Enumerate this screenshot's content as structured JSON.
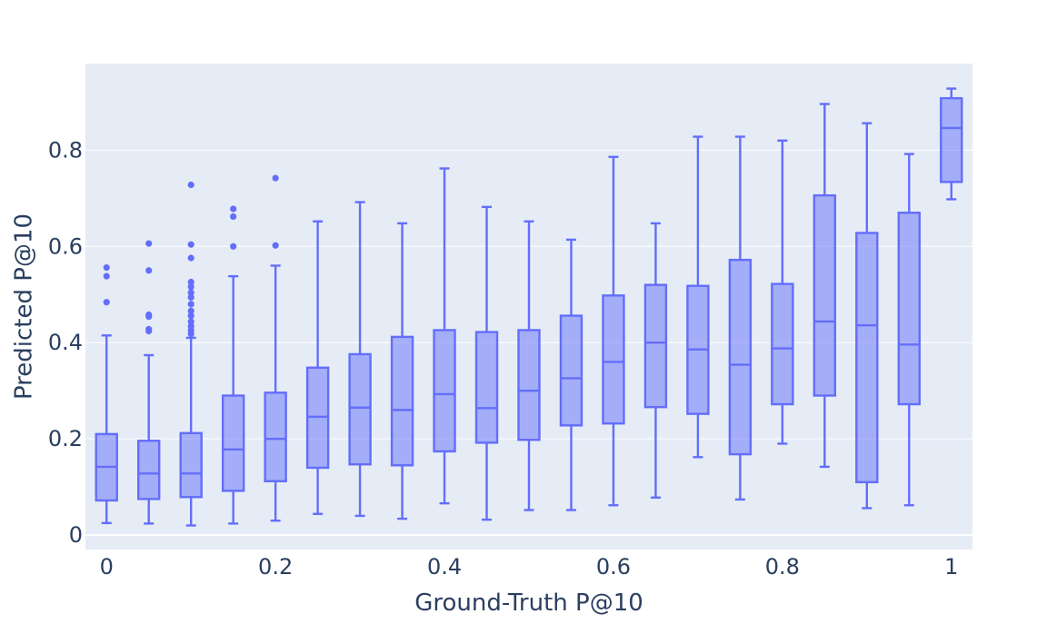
{
  "chart_data": {
    "type": "box",
    "title": "",
    "xlabel": "Ground-Truth P@10",
    "ylabel": "Predicted P@10",
    "xlim": [
      -0.025,
      1.025
    ],
    "ylim": [
      -0.03,
      0.98
    ],
    "x_ticks": [
      0,
      0.2,
      0.4,
      0.6,
      0.8,
      1
    ],
    "x_tick_labels": [
      "0",
      "0.2",
      "0.4",
      "0.6",
      "0.8",
      "1"
    ],
    "y_ticks": [
      0,
      0.2,
      0.4,
      0.6,
      0.8
    ],
    "y_tick_labels": [
      "0",
      "0.2",
      "0.4",
      "0.6",
      "0.8"
    ],
    "grid": true,
    "colors": {
      "box_line": "#636efa",
      "box_fill": "rgba(99,110,250,0.5)",
      "plot_bg": "#e5ecf6",
      "grid": "#ffffff"
    },
    "boxes": [
      {
        "x": 0,
        "min": 0.025,
        "q1": 0.072,
        "median": 0.142,
        "q3": 0.21,
        "max": 0.415,
        "outliers": [
          0.484,
          0.538,
          0.556
        ]
      },
      {
        "x": 0.05,
        "min": 0.024,
        "q1": 0.075,
        "median": 0.128,
        "q3": 0.196,
        "max": 0.374,
        "outliers": [
          0.424,
          0.428,
          0.454,
          0.458,
          0.55,
          0.606
        ]
      },
      {
        "x": 0.1,
        "min": 0.02,
        "q1": 0.079,
        "median": 0.128,
        "q3": 0.212,
        "max": 0.41,
        "outliers": [
          0.418,
          0.426,
          0.434,
          0.444,
          0.456,
          0.466,
          0.48,
          0.494,
          0.504,
          0.516,
          0.526,
          0.576,
          0.604,
          0.728
        ]
      },
      {
        "x": 0.15,
        "min": 0.024,
        "q1": 0.092,
        "median": 0.178,
        "q3": 0.29,
        "max": 0.538,
        "outliers": [
          0.6,
          0.662,
          0.678
        ]
      },
      {
        "x": 0.2,
        "min": 0.03,
        "q1": 0.112,
        "median": 0.2,
        "q3": 0.296,
        "max": 0.56,
        "outliers": [
          0.602,
          0.742
        ]
      },
      {
        "x": 0.25,
        "min": 0.044,
        "q1": 0.14,
        "median": 0.246,
        "q3": 0.348,
        "max": 0.652,
        "outliers": []
      },
      {
        "x": 0.3,
        "min": 0.04,
        "q1": 0.147,
        "median": 0.265,
        "q3": 0.376,
        "max": 0.692,
        "outliers": []
      },
      {
        "x": 0.35,
        "min": 0.034,
        "q1": 0.145,
        "median": 0.26,
        "q3": 0.412,
        "max": 0.648,
        "outliers": []
      },
      {
        "x": 0.4,
        "min": 0.066,
        "q1": 0.174,
        "median": 0.293,
        "q3": 0.426,
        "max": 0.762,
        "outliers": []
      },
      {
        "x": 0.45,
        "min": 0.032,
        "q1": 0.192,
        "median": 0.264,
        "q3": 0.422,
        "max": 0.682,
        "outliers": []
      },
      {
        "x": 0.5,
        "min": 0.052,
        "q1": 0.198,
        "median": 0.3,
        "q3": 0.426,
        "max": 0.652,
        "outliers": []
      },
      {
        "x": 0.55,
        "min": 0.052,
        "q1": 0.228,
        "median": 0.326,
        "q3": 0.456,
        "max": 0.614,
        "outliers": []
      },
      {
        "x": 0.6,
        "min": 0.062,
        "q1": 0.232,
        "median": 0.36,
        "q3": 0.498,
        "max": 0.786,
        "outliers": []
      },
      {
        "x": 0.65,
        "min": 0.078,
        "q1": 0.266,
        "median": 0.4,
        "q3": 0.52,
        "max": 0.648,
        "outliers": []
      },
      {
        "x": 0.7,
        "min": 0.162,
        "q1": 0.252,
        "median": 0.386,
        "q3": 0.518,
        "max": 0.828,
        "outliers": []
      },
      {
        "x": 0.75,
        "min": 0.074,
        "q1": 0.168,
        "median": 0.354,
        "q3": 0.572,
        "max": 0.828,
        "outliers": []
      },
      {
        "x": 0.8,
        "min": 0.19,
        "q1": 0.272,
        "median": 0.388,
        "q3": 0.522,
        "max": 0.82,
        "outliers": []
      },
      {
        "x": 0.85,
        "min": 0.142,
        "q1": 0.29,
        "median": 0.444,
        "q3": 0.706,
        "max": 0.896,
        "outliers": []
      },
      {
        "x": 0.9,
        "min": 0.056,
        "q1": 0.11,
        "median": 0.436,
        "q3": 0.628,
        "max": 0.856,
        "outliers": []
      },
      {
        "x": 0.95,
        "min": 0.062,
        "q1": 0.272,
        "median": 0.396,
        "q3": 0.67,
        "max": 0.792,
        "outliers": []
      },
      {
        "x": 1,
        "min": 0.698,
        "q1": 0.734,
        "median": 0.846,
        "q3": 0.908,
        "max": 0.928,
        "outliers": []
      }
    ]
  }
}
